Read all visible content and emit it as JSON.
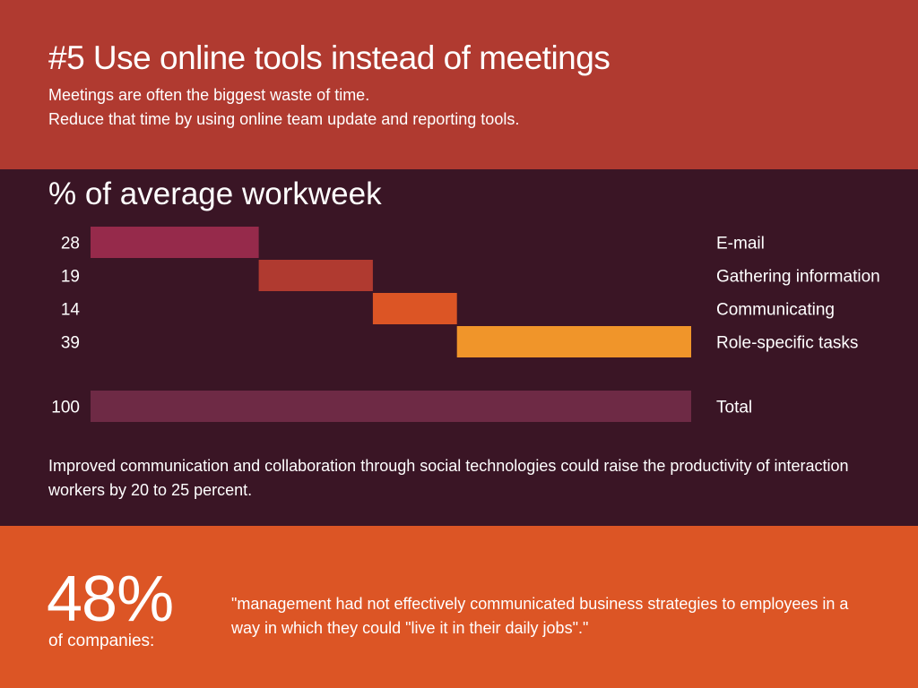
{
  "header": {
    "title": "#5 Use online tools instead of meetings",
    "subtitle_line1": "Meetings are often the biggest waste of time.",
    "subtitle_line2": "Reduce that time by using online team update and reporting tools."
  },
  "chart_data": {
    "type": "bar",
    "title": "% of average workweek",
    "categories": [
      "E-mail",
      "Gathering information",
      "Communicating",
      "Role-specific tasks"
    ],
    "values": [
      28,
      19,
      14,
      39
    ],
    "total_label": "Total",
    "total_value": 100,
    "colors": [
      "#962a4b",
      "#b03a30",
      "#dc5525",
      "#f0952a"
    ],
    "total_color": "#6e2a45",
    "xlim": [
      0,
      100
    ]
  },
  "note": "Improved communication and collaboration through social technologies could raise the productivity of interaction workers by 20 to 25 percent.",
  "stat": {
    "value": "48%",
    "label": "of companies:",
    "quote": "\"management had not effectively communicated business strategies to employees in a way in which they could \"live it in their daily jobs\".\""
  },
  "colors": {
    "top_band": "#b03a30",
    "mid_band": "#3a1525",
    "bottom_band": "#dc5525"
  }
}
